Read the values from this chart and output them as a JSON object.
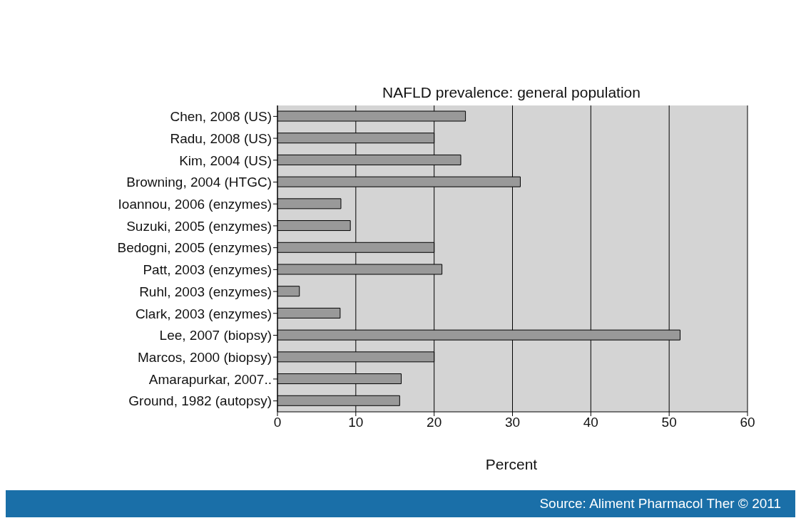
{
  "chart_data": {
    "type": "bar",
    "orientation": "horizontal",
    "title": "NAFLD prevalence: general population",
    "xlabel": "Percent",
    "categories": [
      "Chen, 2008 (US)",
      "Radu, 2008 (US)",
      "Kim, 2004 (US)",
      "Browning, 2004 (HTGC)",
      "Ioannou, 2006 (enzymes)",
      "Suzuki, 2005 (enzymes)",
      "Bedogni, 2005 (enzymes)",
      "Patt, 2003 (enzymes)",
      "Ruhl, 2003 (enzymes)",
      "Clark, 2003 (enzymes)",
      "Lee, 2007 (biopsy)",
      "Marcos, 2000 (biopsy)",
      "Amarapurkar, 2007..",
      "Ground, 1982 (autopsy)"
    ],
    "values": [
      24.0,
      20,
      23.4,
      31.0,
      8.1,
      9.3,
      20,
      21.0,
      2.8,
      8.0,
      51.4,
      20,
      15.8,
      15.6
    ],
    "color": "#999999",
    "xlim": [
      0,
      60
    ],
    "xticks": [
      0,
      10,
      20,
      30,
      40,
      50,
      60
    ],
    "grid": "x",
    "annotations": [
      "Source: Aliment Pharmacol Ther © 2011"
    ]
  }
}
